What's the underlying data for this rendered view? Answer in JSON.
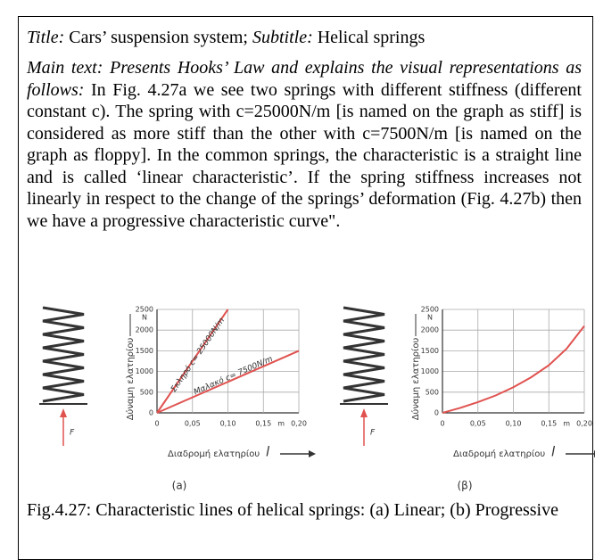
{
  "title_label": "Title:",
  "title": "Cars’ suspension system;",
  "subtitle_label": "Subtitle:",
  "subtitle": "Helical springs",
  "main_label": "Main text: Presents Hooks’ Law and explains the visual representations as follows:",
  "body": "In Fig. 4.27a we see two springs with different stiffness (different constant c). The spring with c=25000N/m [is named on the graph as stiff] is considered as more stiff than the other with c=7500N/m [is named on the graph as floppy]. In the common springs, the characteristic is a straight line and is called ‘linear characteristic’. If the spring stiffness increases not linearly in respect to the change of the springs’ deformation (Fig. 4.27b) then we have a progressive characteristic curve\".",
  "figures": [
    {
      "type": "line",
      "panel_label": "(a)",
      "force_label": "F",
      "y_label": "Δύναμη ελατηρίου",
      "y_unit": "N",
      "x_label": "Διαδρομή ελατηρίου",
      "x_symbol": "l",
      "x_unit": "m",
      "xlim": [
        0,
        0.2
      ],
      "ylim": [
        0,
        2500
      ],
      "grid": true,
      "xticks": [
        0,
        {
          "value": 0.05,
          "label": "0,05"
        },
        {
          "value": 0.1,
          "label": "0,10"
        },
        {
          "value": 0.15,
          "label": "0,15"
        },
        {
          "value": 0.2,
          "label": "0,20"
        }
      ],
      "yticks": [
        0,
        500,
        1000,
        1500,
        2000,
        2500
      ],
      "series": [
        {
          "name": "Σκληρό c= 25000N/m",
          "color": "#e0524f",
          "x": [
            0,
            0.1
          ],
          "values": [
            0,
            2500
          ]
        },
        {
          "name": "Μαλακό c= 7500N/m",
          "color": "#e0524f",
          "x": [
            0,
            0.2
          ],
          "values": [
            0,
            1500
          ]
        }
      ]
    },
    {
      "type": "line",
      "panel_label": "(β)",
      "force_label": "F",
      "y_label": "Δύναμη ελατηρίου",
      "y_unit": "N",
      "x_label": "Διαδρομή ελατηρίου",
      "x_symbol": "l",
      "x_unit": "m",
      "xlim": [
        0,
        0.2
      ],
      "ylim": [
        0,
        2500
      ],
      "grid": true,
      "xticks": [
        0,
        {
          "value": 0.05,
          "label": "0,05"
        },
        {
          "value": 0.1,
          "label": "0,10"
        },
        {
          "value": 0.15,
          "label": "0,15"
        },
        {
          "value": 0.2,
          "label": "0,20"
        }
      ],
      "yticks": [
        0,
        500,
        1000,
        1500,
        2000,
        2500
      ],
      "series": [
        {
          "color": "#e0524f",
          "x": [
            0,
            0.025,
            0.05,
            0.075,
            0.1,
            0.125,
            0.15,
            0.175,
            0.2
          ],
          "values": [
            0,
            120,
            260,
            420,
            620,
            860,
            1150,
            1550,
            2100
          ]
        }
      ]
    }
  ],
  "caption": "Fig.4.27: Characteristic lines of helical springs: (a) Linear; (b) Progressive"
}
